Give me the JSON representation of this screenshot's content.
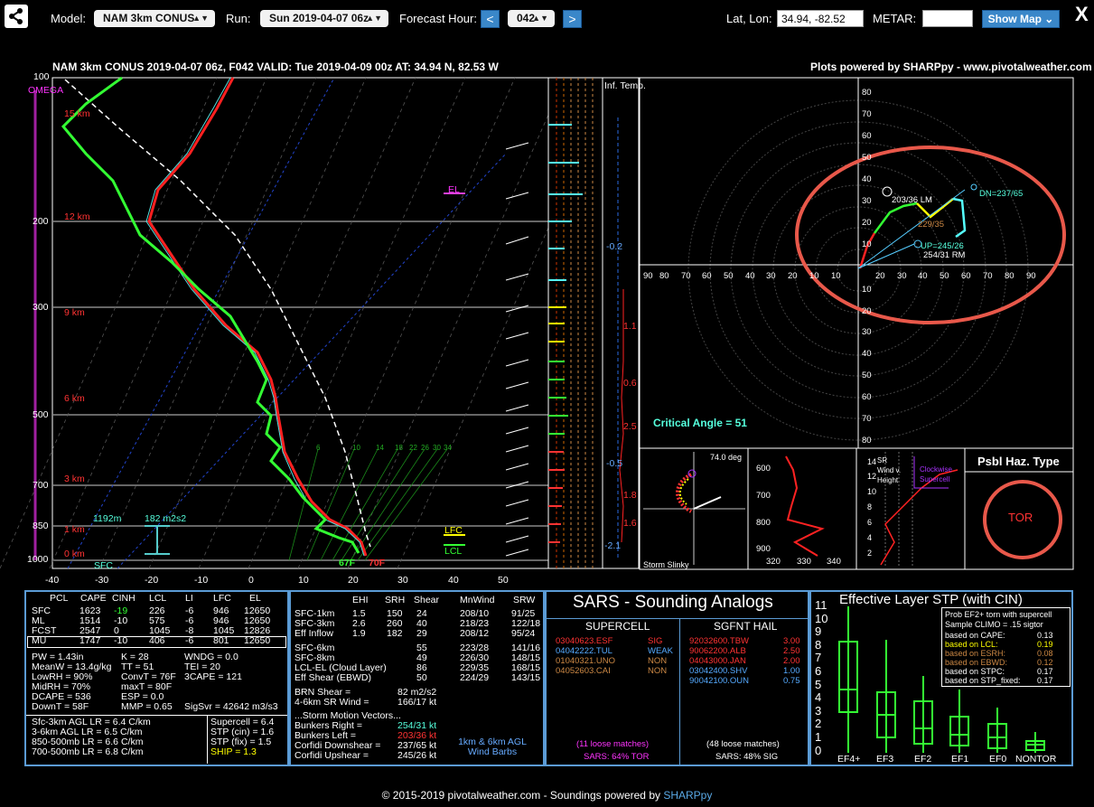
{
  "toolbar": {
    "model_label": "Model:",
    "model_value": "NAM 3km CONUS",
    "run_label": "Run:",
    "run_value": "Sun 2019-04-07 06z",
    "forecast_hour_label": "Forecast Hour:",
    "prev_label": "<",
    "hour_value": "042",
    "next_label": ">",
    "latlon_label": "Lat, Lon:",
    "latlon_value": "34.94, -82.52",
    "metar_label": "METAR:",
    "metar_value": "",
    "show_map_label": "Show Map ⌄",
    "close_label": "X"
  },
  "skewt": {
    "title": "NAM 3km CONUS 2019-04-07 06z, F042   VALID: Tue 2019-04-09 00z   AT: 34.94 N, 82.53 W",
    "credit": "Plots powered by SHARPpy - www.pivotalweather.com",
    "pressure_labels": [
      "100",
      "200",
      "300",
      "500",
      "700",
      "850",
      "1000"
    ],
    "height_labels": [
      "15 km",
      "12 km",
      "9 km",
      "6 km",
      "3 km",
      "1 km",
      "0 km"
    ],
    "temp_labels": [
      "-40",
      "-30",
      "-20",
      "-10",
      "0",
      "10",
      "20",
      "30",
      "40",
      "50"
    ],
    "omega_label": "OMEGA",
    "el_label": "EL",
    "lfc_label": "LFC",
    "lcl_label": "LCL",
    "sfc_label": "SFC",
    "height_1192": "1192m",
    "srh_182": "182 m2s2",
    "sfc_dew": "67F",
    "sfc_temp": "70F",
    "mixing_ratios": [
      "6",
      "10",
      "14",
      "18",
      "22",
      "26",
      "30",
      "34"
    ],
    "inf_temp_label": "Inf. Temp.",
    "inf_values": [
      "-0.2",
      "1.1",
      "0.6",
      "2.5",
      "-0.5",
      "1.8",
      "1.6",
      "-2.1"
    ]
  },
  "hodograph": {
    "speed_rings": [
      "80",
      "70",
      "60",
      "50",
      "40",
      "30",
      "20",
      "10",
      "10",
      "20",
      "30",
      "40",
      "50",
      "60",
      "70",
      "80"
    ],
    "x_labels": [
      "90",
      "80",
      "70",
      "60",
      "50",
      "40",
      "30",
      "20",
      "10",
      "10",
      "20",
      "30",
      "40",
      "50",
      "60",
      "70",
      "80",
      "90"
    ],
    "lm_label": "203/36 LM",
    "rm_label": "254/31 RM",
    "dn_label": "DN=237/65",
    "up_label": "UP=245/26",
    "bunkers_label": "229/35",
    "critical_angle": "Critical Angle = 51"
  },
  "slinky": {
    "deg": "74.0 deg",
    "label": "Storm Slinky"
  },
  "theta": {
    "y_labels": [
      "600",
      "700",
      "800",
      "900"
    ],
    "x_labels": [
      "320",
      "330",
      "340"
    ]
  },
  "srwind": {
    "title": "SR Wind v. Height",
    "legend": "Clockwise Supercell",
    "y_labels": [
      "14",
      "12",
      "10",
      "8",
      "6",
      "4",
      "2"
    ]
  },
  "hazard": {
    "title": "Psbl Haz. Type",
    "value": "TOR"
  },
  "parcels": {
    "headers": [
      "PCL",
      "CAPE",
      "CINH",
      "LCL",
      "LI",
      "LFC",
      "EL"
    ],
    "rows": [
      [
        "SFC",
        "1623",
        "-19",
        "226",
        "-6",
        "946",
        "12650"
      ],
      [
        "ML",
        "1514",
        "-10",
        "575",
        "-6",
        "946",
        "12650"
      ],
      [
        "FCST",
        "2547",
        "0",
        "1045",
        "-8",
        "1045",
        "12826"
      ],
      [
        "MU",
        "1747",
        "-10",
        "406",
        "-6",
        "801",
        "12650"
      ]
    ]
  },
  "indices": [
    [
      "PW = 1.43in",
      "K = 28",
      "WNDG = 0.0"
    ],
    [
      "MeanW = 13.4g/kg",
      "TT = 51",
      "TEI = 20"
    ],
    [
      "LowRH = 90%",
      "ConvT = 76F",
      "3CAPE = 121"
    ],
    [
      "MidRH = 70%",
      "maxT = 80F",
      ""
    ],
    [
      "DCAPE = 536",
      "ESP = 0.0",
      ""
    ],
    [
      "DownT = 58F",
      "MMP = 0.65",
      "SigSvr = 42642 m3/s3"
    ]
  ],
  "lapse": [
    "Sfc-3km AGL LR = 6.4 C/km",
    "3-6km AGL LR = 6.5 C/km",
    "850-500mb LR = 6.6 C/km",
    "700-500mb LR = 6.8 C/km"
  ],
  "supercell": [
    "Supercell = 6.4",
    "STP (cin) = 1.6",
    "STP (fix) = 1.5",
    "SHIP = 1.3"
  ],
  "kinematics": {
    "headers": [
      "EHI",
      "SRH",
      "Shear",
      "MnWind",
      "SRW"
    ],
    "rows": [
      [
        "SFC-1km",
        "1.5",
        "150",
        "24",
        "208/10",
        "91/25"
      ],
      [
        "SFC-3km",
        "2.6",
        "260",
        "40",
        "218/23",
        "122/18"
      ],
      [
        "Eff Inflow",
        "1.9",
        "182",
        "29",
        "208/12",
        "95/24"
      ],
      [
        "SFC-6km",
        "",
        "",
        "55",
        "223/28",
        "141/16"
      ],
      [
        "SFC-8km",
        "",
        "",
        "49",
        "226/30",
        "148/15"
      ],
      [
        "LCL-EL (Cloud Layer)",
        "",
        "",
        "86",
        "229/35",
        "168/15"
      ],
      [
        "Eff Shear (EBWD)",
        "",
        "",
        "50",
        "224/29",
        "143/15"
      ]
    ],
    "brn_shear": "BRN Shear =",
    "brn_value": "82 m2/s2",
    "sr_wind": "4-6km SR Wind =",
    "sr_value": "166/17 kt",
    "storm_motion": "...Storm Motion Vectors...",
    "bunkers_right": "Bunkers Right =",
    "br_value": "254/31 kt",
    "bunkers_left": "Bunkers Left =",
    "bl_value": "203/36 kt",
    "corfidi_down": "Corfidi Downshear =",
    "cd_value": "237/65 kt",
    "corfidi_up": "Corfidi Upshear =",
    "cu_value": "245/26 kt",
    "wind_barbs": "1km & 6km AGL Wind Barbs"
  },
  "sars": {
    "title": "SARS - Sounding Analogs",
    "supercell_title": "SUPERCELL",
    "hail_title": "SGFNT HAIL",
    "supercell_rows": [
      [
        "03040623.ESF",
        "SIG"
      ],
      [
        "04042222.TUL",
        "WEAK"
      ],
      [
        "01040321.UNO",
        "NON"
      ],
      [
        "04052603.CAI",
        "NON"
      ]
    ],
    "hail_rows": [
      [
        "92032600.TBW",
        "3.00"
      ],
      [
        "90062200.ALB",
        "2.50"
      ],
      [
        "04043000.JAN",
        "2.00"
      ],
      [
        "03042400.SHV",
        "1.00"
      ],
      [
        "90042100.OUN",
        "0.75"
      ]
    ],
    "supercell_matches": "(11 loose matches)",
    "supercell_prob": "SARS: 64% TOR",
    "hail_matches": "(48 loose matches)",
    "hail_prob": "SARS: 48% SIG"
  },
  "stp": {
    "title": "Effective Layer STP (with CIN)",
    "y_labels": [
      "11",
      "10",
      "9",
      "8",
      "7",
      "6",
      "5",
      "4",
      "3",
      "2",
      "1",
      "0"
    ],
    "categories": [
      "EF4+",
      "EF3",
      "EF2",
      "EF1",
      "EF0",
      "NONTOR"
    ],
    "legend_title": "Prob EF2+ torn with supercell",
    "legend_sub": "Sample CLIMO = .15 sigtor",
    "legend_rows": [
      [
        "based on CAPE:",
        "0.13"
      ],
      [
        "based on LCL:",
        "0.19"
      ],
      [
        "based on ESRH:",
        "0.08"
      ],
      [
        "based on EBWD:",
        "0.12"
      ],
      [
        "based on STPC:",
        "0.17"
      ],
      [
        "based on STP_fixed:",
        "0.17"
      ]
    ]
  },
  "footer": {
    "text": "© 2015-2019 pivotalweather.com - Soundings powered by ",
    "link": "SHARPpy"
  },
  "colors": {
    "accent": "#3a87c9",
    "temp": "#ff2020",
    "dew": "#33ff33",
    "box_border": "#5b9bd5",
    "annotation": "#e8584a"
  }
}
